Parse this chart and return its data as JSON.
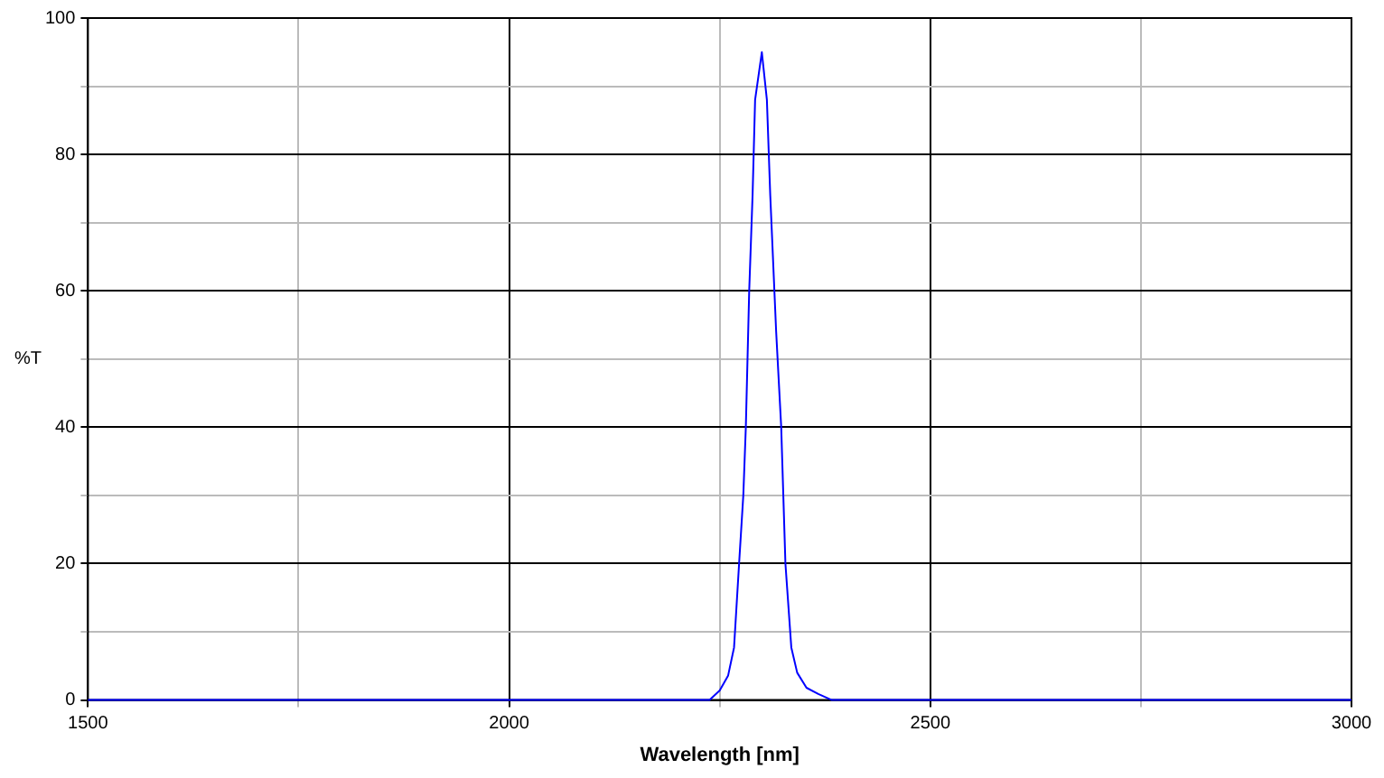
{
  "chart_data": {
    "type": "line",
    "xlabel": "Wavelength [nm]",
    "ylabel": "%T",
    "x": [
      1500,
      2238,
      2250,
      2260,
      2267,
      2273,
      2278,
      2281,
      2285,
      2289,
      2292,
      2300,
      2306,
      2310,
      2317,
      2323,
      2328,
      2335,
      2342,
      2353,
      2367,
      2383,
      3000
    ],
    "series": [
      {
        "color": "#0000ff",
        "values": [
          0,
          0,
          1.4,
          3.6,
          7.7,
          20,
          30,
          40,
          60,
          74,
          88,
          95,
          88,
          74,
          54,
          40,
          20,
          7.7,
          4,
          1.8,
          0.9,
          0,
          0
        ]
      }
    ],
    "xlim": [
      1500,
      3000
    ],
    "xticks": [
      1500,
      {
        "value": 1750,
        "label": null
      },
      2000,
      {
        "value": 2250,
        "label": null
      },
      2500,
      {
        "value": 2750,
        "label": null
      },
      3000
    ],
    "ylim": [
      0,
      100
    ],
    "yticks": [
      0,
      {
        "value": 10,
        "label": null
      },
      20,
      {
        "value": 30,
        "label": null
      },
      40,
      {
        "value": 50,
        "label": null
      },
      60,
      {
        "value": 70,
        "label": null
      },
      80,
      {
        "value": 90,
        "label": null
      },
      100
    ],
    "grid": true,
    "legend": false,
    "marker": "none",
    "line_style": "solid"
  }
}
